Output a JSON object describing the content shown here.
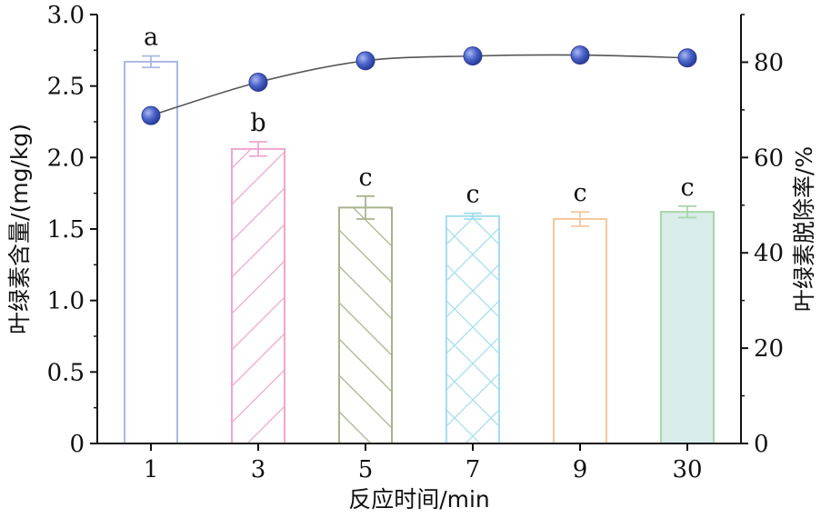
{
  "chart_data": {
    "type": "bar",
    "xlabel": "反应时间/min",
    "ylabel": "叶绿素含量/(mg/kg)",
    "y2label": "叶绿素脱除率/%",
    "categories": [
      "1",
      "3",
      "5",
      "7",
      "9",
      "30"
    ],
    "ylim": [
      0,
      3.0
    ],
    "y2lim": [
      0,
      90
    ],
    "yticks": [
      "0",
      "0.5",
      "1.0",
      "1.5",
      "2.0",
      "2.5",
      "3.0"
    ],
    "y2ticks": [
      "0",
      "20",
      "40",
      "60",
      "80"
    ],
    "grid": false,
    "series": [
      {
        "type": "bar",
        "axis": "left",
        "values": [
          2.67,
          2.06,
          1.65,
          1.59,
          1.57,
          1.62
        ],
        "errors": [
          0.04,
          0.05,
          0.08,
          0.02,
          0.05,
          0.04
        ],
        "significance": [
          "a",
          "b",
          "c",
          "c",
          "c",
          "c"
        ],
        "colors": [
          "#aab8e6",
          "#f1a5cf",
          "#a8b48c",
          "#a5ddf0",
          "#f6c79c",
          "#a8d8a8"
        ],
        "patterns": [
          "none",
          "diag-right",
          "diag-left",
          "cross",
          "none",
          "solid"
        ]
      },
      {
        "type": "line",
        "axis": "right",
        "values": [
          68.8,
          75.8,
          80.3,
          81.3,
          81.5,
          80.9
        ],
        "color": "#3b54b8"
      }
    ]
  }
}
